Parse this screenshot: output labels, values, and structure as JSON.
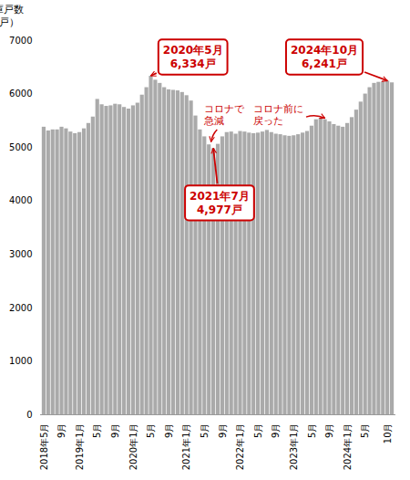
{
  "chart_data": {
    "type": "bar",
    "ylabel": "在庫戸数\n（戸）",
    "categories": [
      "2018年5月",
      null,
      null,
      null,
      "9月",
      null,
      null,
      null,
      "2019年1月",
      null,
      null,
      null,
      "5月",
      null,
      null,
      null,
      "9月",
      null,
      null,
      null,
      "2020年1月",
      null,
      null,
      null,
      "5月",
      null,
      null,
      null,
      "9月",
      null,
      null,
      null,
      "2021年1月",
      null,
      null,
      null,
      "5月",
      null,
      null,
      null,
      "9月",
      null,
      null,
      null,
      "2022年1月",
      null,
      null,
      null,
      "5月",
      null,
      null,
      null,
      "9月",
      null,
      null,
      null,
      "2023年1月",
      null,
      null,
      null,
      "5月",
      null,
      null,
      null,
      "9月",
      null,
      null,
      null,
      "2024年1月",
      null,
      null,
      null,
      "5月",
      null,
      null,
      null,
      null,
      "10月",
      null
    ],
    "values": [
      5380,
      5310,
      5330,
      5330,
      5380,
      5350,
      5290,
      5260,
      5280,
      5350,
      5450,
      5570,
      5900,
      5800,
      5770,
      5780,
      5810,
      5800,
      5750,
      5720,
      5780,
      5830,
      5980,
      6120,
      6334,
      6260,
      6200,
      6120,
      6080,
      6070,
      6060,
      6030,
      5970,
      5870,
      5590,
      5330,
      5200,
      5050,
      4977,
      5060,
      5200,
      5280,
      5290,
      5250,
      5300,
      5290,
      5270,
      5260,
      5270,
      5290,
      5320,
      5280,
      5250,
      5240,
      5220,
      5210,
      5220,
      5240,
      5270,
      5300,
      5400,
      5520,
      5540,
      5520,
      5480,
      5430,
      5400,
      5380,
      5450,
      5560,
      5700,
      5850,
      6000,
      6120,
      6200,
      6220,
      6230,
      6241,
      6210
    ],
    "color": "#aaaaaa",
    "ylim": [
      0,
      7000
    ],
    "yticks": [
      0,
      1000,
      2000,
      3000,
      4000,
      5000,
      6000,
      7000
    ],
    "grid": false,
    "annotations": [
      {
        "text": "2020年5月\n6,334戸",
        "x": 24,
        "y": 6334,
        "color": "#cc0000"
      },
      {
        "text": "2021年7月\n4,977戸",
        "x": 38,
        "y": 4977,
        "color": "#cc0000"
      },
      {
        "text": "2024年10月\n6,241戸",
        "x": 77,
        "y": 6241,
        "color": "#cc0000"
      },
      {
        "text": "コロナで\n急減",
        "x": 37.5,
        "y": 5100,
        "color": "#cc0000"
      },
      {
        "text": "コロナ前に\n戻った",
        "x": 63,
        "y": 5540,
        "color": "#cc0000"
      }
    ]
  }
}
